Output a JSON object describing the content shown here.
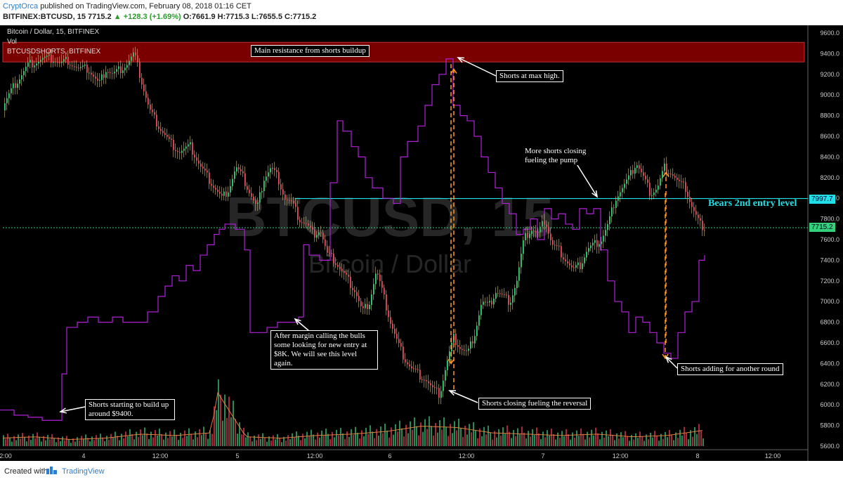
{
  "header": {
    "author": "CryptOrca",
    "published": "published on TradingView.com, February 08, 2018 01:16 CET",
    "symbol": "BITFINEX:BTCUSD, 15",
    "last": "7715.2",
    "change": "▲ +128.3 (+1.69%)",
    "ohlc": "O:7661.9 H:7715.3 L:7655.5 C:7715.2"
  },
  "legend": {
    "main": "Bitcoin / Dollar, 15, BITFINEX",
    "vol": "Vol",
    "shorts": "BTCUSDSHORTS, BITFINEX"
  },
  "watermark": {
    "big": "BTCUSD, 15",
    "small": "Bitcoin / Dollar"
  },
  "footer": {
    "created": "Created with",
    "brand": "TradingView"
  },
  "colors": {
    "up": "#33d17a",
    "down": "#e84a5f",
    "shorts": "#b020d8",
    "resistance": "#7a0000",
    "level": "#1fe0e6",
    "arrow": "#ff9a1f",
    "volume_up": "#2a8a55",
    "volume_down": "#a22a3a"
  },
  "annotations": {
    "resistance": "Main resistance from shorts buildup",
    "max_high": "Shorts at max high.",
    "closing_pump": "More shorts closing fueling the pump",
    "bears_level": "Bears 2nd entry level",
    "margin_call": "After margin calling the bulls some looking for new entry at $8K. We will see this level again.",
    "reversal": "Shorts closing fueling the reversal",
    "start_build": "Shorts starting to build up around $9400.",
    "adding": "Shorts adding for another round"
  },
  "price_badges": {
    "level": "7997.7",
    "last": "7715.2"
  },
  "chart_data": {
    "type": "candlestick",
    "title": "Bitcoin / Dollar, 15, BITFINEX",
    "y_ticks": [
      5600,
      5800,
      6000,
      6200,
      6400,
      6600,
      6800,
      7000,
      7200,
      7400,
      7600,
      7800,
      8000,
      8200,
      8400,
      8600,
      8800,
      9000,
      9200,
      9400,
      9600
    ],
    "x_ticks": [
      "2:00",
      "4",
      "12:00",
      "5",
      "12:00",
      "6",
      "12:00",
      "7",
      "12:00",
      "8",
      "12:00"
    ],
    "ylim": [
      5500,
      9700
    ],
    "resistance_zone": [
      9320,
      9510
    ],
    "horizontal_level": 7997.7,
    "last_price": 7715.2,
    "price_path": {
      "x": [
        0,
        8,
        20,
        40,
        60,
        75,
        85,
        95,
        110,
        125,
        140,
        150,
        160,
        170,
        180,
        190,
        200,
        212,
        225,
        240,
        255,
        270,
        285,
        295,
        305,
        315,
        325,
        335,
        345,
        355,
        365,
        375,
        385,
        395,
        405,
        415,
        425,
        435,
        445,
        455,
        465,
        475,
        485,
        495,
        505,
        515,
        525,
        535,
        545,
        555,
        565,
        575,
        585,
        595,
        605,
        615,
        625,
        635,
        645,
        655,
        665,
        675,
        685,
        695,
        705,
        715,
        725,
        735,
        745,
        755,
        765,
        775,
        785,
        795,
        805,
        815,
        825,
        835,
        845,
        855,
        865,
        875,
        885,
        895,
        905,
        915,
        925,
        935,
        945,
        955,
        965,
        975,
        985,
        995,
        1003
      ],
      "y": [
        8850,
        8950,
        9100,
        9300,
        9350,
        9350,
        9300,
        9340,
        9250,
        9250,
        9100,
        9250,
        9200,
        9250,
        9300,
        9400,
        9150,
        8850,
        8700,
        8550,
        8450,
        8500,
        8300,
        8200,
        8100,
        8000,
        8100,
        8300,
        8200,
        8050,
        7900,
        8200,
        8300,
        8200,
        8000,
        7950,
        7800,
        7750,
        7650,
        7700,
        7450,
        7400,
        7300,
        7200,
        7100,
        6900,
        7000,
        7300,
        7050,
        6800,
        6600,
        6450,
        6350,
        6300,
        6250,
        6150,
        6100,
        6400,
        6650,
        6550,
        6500,
        6700,
        7000,
        6950,
        7100,
        7050,
        7000,
        7200,
        7600,
        7700,
        7650,
        7800,
        7550,
        7500,
        7400,
        7300,
        7350,
        7500,
        7550,
        7600,
        7750,
        8000,
        8100,
        8200,
        8350,
        8200,
        8050,
        8100,
        8300,
        8250,
        8150,
        8100,
        7900,
        7750,
        7715
      ]
    },
    "shorts_path": {
      "x": [
        0,
        20,
        40,
        60,
        80,
        88,
        95,
        110,
        125,
        140,
        160,
        175,
        190,
        210,
        225,
        235,
        245,
        255,
        265,
        275,
        285,
        295,
        305,
        312,
        320,
        335,
        348,
        356,
        365,
        380,
        395,
        410,
        425,
        432,
        440,
        455,
        470,
        480,
        488,
        500,
        510,
        520,
        530,
        545,
        560,
        570,
        580,
        595,
        605,
        615,
        625,
        635,
        645,
        655,
        665,
        675,
        685,
        695,
        705,
        715,
        725,
        735,
        745,
        755,
        765,
        775,
        785,
        795,
        805,
        815,
        825,
        835,
        845,
        855,
        865,
        875,
        885,
        895,
        905,
        915,
        925,
        935,
        945,
        955,
        965,
        975,
        985,
        995,
        1003
      ],
      "y": [
        5950,
        5900,
        5880,
        5850,
        5850,
        6300,
        6750,
        6800,
        6850,
        6800,
        6850,
        6800,
        6800,
        6900,
        7050,
        7150,
        7250,
        7200,
        7350,
        7300,
        7450,
        7550,
        7650,
        7700,
        7750,
        7700,
        7500,
        6700,
        6700,
        6750,
        6800,
        6800,
        6850,
        7550,
        7450,
        7400,
        8150,
        8750,
        8650,
        8500,
        8400,
        8200,
        8100,
        8000,
        7950,
        8400,
        8550,
        8700,
        8900,
        9100,
        9200,
        9350,
        8900,
        8800,
        8750,
        8600,
        8400,
        8250,
        8100,
        7950,
        7850,
        7650,
        7700,
        7800,
        7600,
        7900,
        7800,
        7850,
        7750,
        7700,
        7900,
        7850,
        7900,
        7500,
        7200,
        7000,
        6900,
        6700,
        6850,
        6800,
        6700,
        6600,
        6500,
        6450,
        6700,
        6900,
        7000,
        7400,
        7450
      ]
    },
    "volume_profile": {
      "x": [
        0,
        50,
        100,
        150,
        200,
        250,
        300,
        310,
        350,
        400,
        450,
        500,
        550,
        600,
        650,
        700,
        750,
        800,
        850,
        900,
        950,
        1003
      ],
      "values": [
        60,
        70,
        50,
        60,
        90,
        80,
        100,
        400,
        70,
        60,
        80,
        90,
        110,
        150,
        140,
        100,
        90,
        80,
        90,
        70,
        80,
        120
      ]
    }
  }
}
